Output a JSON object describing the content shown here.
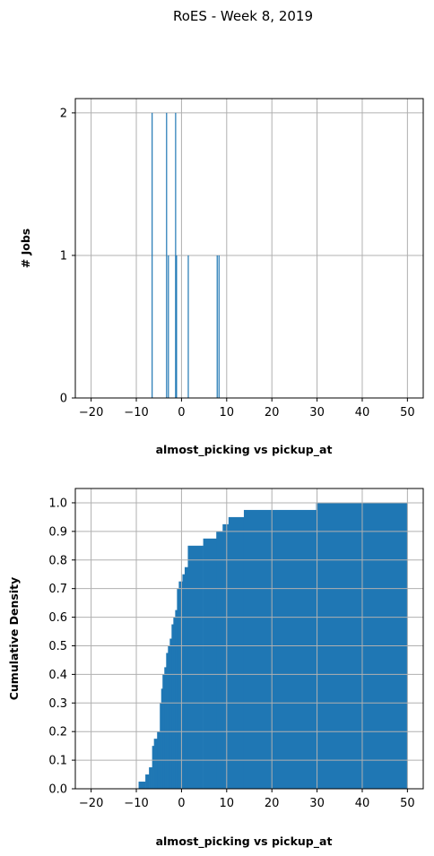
{
  "title": "RoES - Week 8, 2019",
  "colors": {
    "bar": "#1f77b4",
    "grid": "#b0b0b0",
    "axis": "#000000"
  },
  "chart_data": [
    {
      "type": "bar",
      "subtype": "histogram",
      "xlabel": "almost_picking vs pickup_at",
      "ylabel": "# Jobs",
      "xlim": [
        -23.5,
        53.5
      ],
      "ylim": [
        0,
        2.1
      ],
      "xticks": [
        -20,
        -10,
        0,
        10,
        20,
        30,
        40,
        50
      ],
      "yticks": [
        0,
        1,
        2
      ],
      "grid": true,
      "bars": [
        {
          "x": -6.5,
          "value": 2
        },
        {
          "x": -3.3,
          "value": 2
        },
        {
          "x": -2.9,
          "value": 1
        },
        {
          "x": -1.3,
          "value": 2
        },
        {
          "x": -1.1,
          "value": 1
        },
        {
          "x": 1.5,
          "value": 1
        },
        {
          "x": 7.9,
          "value": 1
        },
        {
          "x": 8.3,
          "value": 1
        }
      ]
    },
    {
      "type": "area",
      "subtype": "cumulative histogram",
      "xlabel": "almost_picking vs pickup_at",
      "ylabel": "Cumulative Density",
      "xlim": [
        -23.5,
        53.5
      ],
      "ylim": [
        0,
        1.05
      ],
      "xticks": [
        -20,
        -10,
        0,
        10,
        20,
        30,
        40,
        50
      ],
      "yticks": [
        0.0,
        0.1,
        0.2,
        0.3,
        0.4,
        0.5,
        0.6,
        0.7,
        0.8,
        0.9,
        1.0
      ],
      "grid": true,
      "steps": [
        {
          "x0": -9.5,
          "x1": -8.0,
          "value": 0.025
        },
        {
          "x0": -8.0,
          "x1": -7.2,
          "value": 0.05
        },
        {
          "x0": -7.2,
          "x1": -6.5,
          "value": 0.075
        },
        {
          "x0": -6.5,
          "x1": -6.1,
          "value": 0.15
        },
        {
          "x0": -6.1,
          "x1": -5.4,
          "value": 0.175
        },
        {
          "x0": -5.4,
          "x1": -4.8,
          "value": 0.2
        },
        {
          "x0": -4.8,
          "x1": -4.5,
          "value": 0.3
        },
        {
          "x0": -4.5,
          "x1": -4.2,
          "value": 0.35
        },
        {
          "x0": -4.2,
          "x1": -3.8,
          "value": 0.4
        },
        {
          "x0": -3.8,
          "x1": -3.4,
          "value": 0.425
        },
        {
          "x0": -3.4,
          "x1": -3.0,
          "value": 0.475
        },
        {
          "x0": -3.0,
          "x1": -2.6,
          "value": 0.5
        },
        {
          "x0": -2.6,
          "x1": -2.2,
          "value": 0.525
        },
        {
          "x0": -2.2,
          "x1": -1.8,
          "value": 0.575
        },
        {
          "x0": -1.8,
          "x1": -1.4,
          "value": 0.6
        },
        {
          "x0": -1.4,
          "x1": -1.0,
          "value": 0.625
        },
        {
          "x0": -1.0,
          "x1": -0.6,
          "value": 0.7
        },
        {
          "x0": -0.6,
          "x1": 0.2,
          "value": 0.725
        },
        {
          "x0": 0.2,
          "x1": 0.7,
          "value": 0.75
        },
        {
          "x0": 0.7,
          "x1": 1.4,
          "value": 0.775
        },
        {
          "x0": 1.4,
          "x1": 4.8,
          "value": 0.85
        },
        {
          "x0": 4.8,
          "x1": 7.7,
          "value": 0.875
        },
        {
          "x0": 7.7,
          "x1": 9.1,
          "value": 0.9
        },
        {
          "x0": 9.1,
          "x1": 10.4,
          "value": 0.925
        },
        {
          "x0": 10.4,
          "x1": 13.8,
          "value": 0.95
        },
        {
          "x0": 13.8,
          "x1": 29.8,
          "value": 0.975
        },
        {
          "x0": 29.8,
          "x1": 50.0,
          "value": 1.0
        }
      ]
    }
  ]
}
